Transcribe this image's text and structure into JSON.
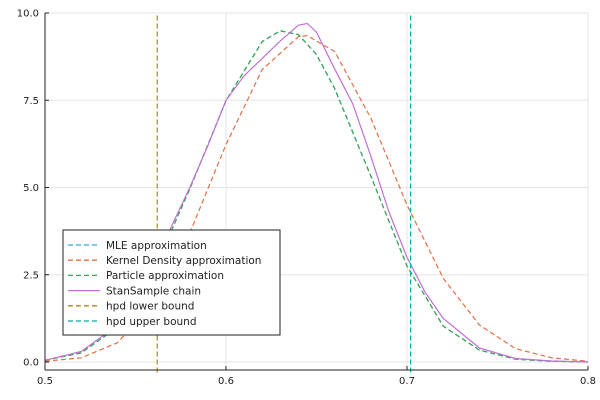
{
  "chart_data": {
    "type": "line",
    "title": "",
    "xlabel": "",
    "ylabel": "",
    "xlim": [
      0.5,
      0.8
    ],
    "ylim": [
      0,
      10
    ],
    "grid": true,
    "legend_position": "bottom-left",
    "xticks": [
      {
        "value": 0.5,
        "label": "0.5"
      },
      {
        "value": 0.6,
        "label": "0.6"
      },
      {
        "value": 0.7,
        "label": "0.7"
      },
      {
        "value": 0.8,
        "label": "0.8"
      }
    ],
    "yticks": [
      {
        "value": 0,
        "label": "0.0"
      },
      {
        "value": 2.5,
        "label": "2.5"
      },
      {
        "value": 5.0,
        "label": "5.0"
      },
      {
        "value": 7.5,
        "label": "7.5"
      },
      {
        "value": 10.0,
        "label": "10.0"
      }
    ],
    "series": [
      {
        "name": "MLE approximation",
        "color": "#22aee6",
        "dash": "dashed",
        "x": [
          0.5,
          0.52,
          0.54,
          0.56,
          0.58,
          0.6,
          0.62,
          0.63,
          0.64,
          0.65,
          0.66,
          0.68,
          0.7,
          0.72,
          0.74,
          0.76,
          0.78,
          0.8
        ],
        "y": [
          0.05,
          0.26,
          0.99,
          2.61,
          4.96,
          7.49,
          9.18,
          9.49,
          9.38,
          8.81,
          7.84,
          5.33,
          2.75,
          1.03,
          0.34,
          0.08,
          0.02,
          0.0
        ]
      },
      {
        "name": "Kernel Density approximation",
        "color": "#e26f46",
        "dash": "dashed",
        "x": [
          0.5,
          0.52,
          0.54,
          0.56,
          0.58,
          0.6,
          0.62,
          0.64,
          0.645,
          0.66,
          0.68,
          0.7,
          0.72,
          0.74,
          0.76,
          0.78,
          0.8
        ],
        "y": [
          0.02,
          0.12,
          0.55,
          1.7,
          3.7,
          6.23,
          8.38,
          9.32,
          9.35,
          8.9,
          6.99,
          4.5,
          2.4,
          1.06,
          0.38,
          0.12,
          0.02
        ]
      },
      {
        "name": "Particle approximation",
        "color": "#3da44d",
        "dash": "dashed",
        "x": [
          0.5,
          0.52,
          0.54,
          0.56,
          0.58,
          0.6,
          0.62,
          0.63,
          0.64,
          0.65,
          0.66,
          0.68,
          0.7,
          0.72,
          0.74,
          0.76,
          0.78,
          0.8
        ],
        "y": [
          0.05,
          0.26,
          0.99,
          2.61,
          4.96,
          7.49,
          9.18,
          9.49,
          9.38,
          8.81,
          7.84,
          5.33,
          2.75,
          1.03,
          0.34,
          0.08,
          0.02,
          0.0
        ]
      },
      {
        "name": "StanSample chain",
        "color": "#c271d2",
        "dash": "solid",
        "x": [
          0.5,
          0.52,
          0.54,
          0.55,
          0.56,
          0.57,
          0.58,
          0.59,
          0.6,
          0.61,
          0.62,
          0.63,
          0.64,
          0.645,
          0.65,
          0.66,
          0.67,
          0.68,
          0.69,
          0.7,
          0.71,
          0.72,
          0.74,
          0.76,
          0.78,
          0.8
        ],
        "y": [
          0.05,
          0.3,
          1.05,
          1.8,
          2.8,
          3.9,
          5.0,
          6.2,
          7.5,
          8.2,
          8.7,
          9.2,
          9.65,
          9.7,
          9.45,
          8.4,
          7.4,
          5.9,
          4.3,
          3.0,
          2.0,
          1.25,
          0.4,
          0.1,
          0.03,
          0.0
        ]
      },
      {
        "name": "hpd lower bound",
        "color": "#ac8d18",
        "dash": "dashed",
        "x": [
          0.562,
          0.562
        ],
        "y": [
          -0.3,
          10.0
        ]
      },
      {
        "name": "hpd upper bound",
        "color": "#00a9ad",
        "dash": "dashed",
        "x": [
          0.702,
          0.702
        ],
        "y": [
          -0.3,
          10.0
        ]
      }
    ]
  }
}
